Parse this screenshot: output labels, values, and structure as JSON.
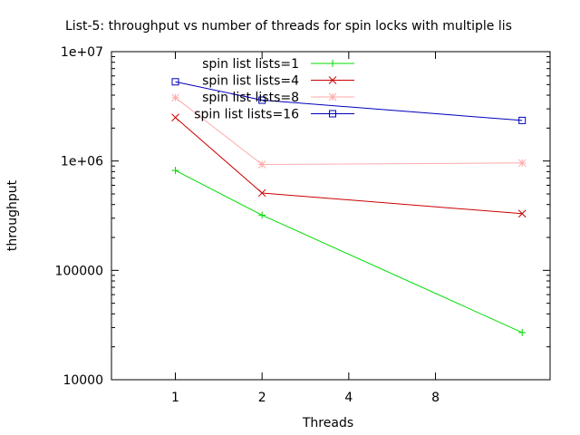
{
  "chart_data": {
    "type": "line",
    "title": "List-5: throughput vs number of threads for spin locks with multiple lis",
    "xlabel": "Threads",
    "ylabel": "throughput",
    "x_scale": "log2",
    "y_scale": "log10",
    "xlim": [
      0.6,
      20
    ],
    "ylim": [
      10000,
      10000000
    ],
    "x_ticks": [
      {
        "value": 1,
        "label": "1"
      },
      {
        "value": 2,
        "label": "2"
      },
      {
        "value": 4,
        "label": "4"
      },
      {
        "value": 8,
        "label": "8"
      }
    ],
    "y_ticks": [
      {
        "value": 10000,
        "label": "10000"
      },
      {
        "value": 100000,
        "label": "100000"
      },
      {
        "value": 1000000,
        "label": "1e+06"
      },
      {
        "value": 10000000,
        "label": "1e+07"
      }
    ],
    "grid": false,
    "legend_position": "top-left inside",
    "series": [
      {
        "name": "spin list lists=1",
        "color": "#00dd00",
        "marker": "plus",
        "points": [
          {
            "x": 1,
            "y": 820000
          },
          {
            "x": 2,
            "y": 320000
          },
          {
            "x": 16,
            "y": 27000
          }
        ]
      },
      {
        "name": "spin list lists=4",
        "color": "#cc0000",
        "marker": "x",
        "points": [
          {
            "x": 1,
            "y": 2500000
          },
          {
            "x": 2,
            "y": 510000
          },
          {
            "x": 16,
            "y": 330000
          }
        ]
      },
      {
        "name": "spin list lists=8",
        "color": "#ffaaaa",
        "marker": "star",
        "points": [
          {
            "x": 1,
            "y": 3800000
          },
          {
            "x": 2,
            "y": 930000
          },
          {
            "x": 16,
            "y": 960000
          }
        ]
      },
      {
        "name": "spin list lists=16",
        "color": "#0000bb",
        "marker": "square",
        "points": [
          {
            "x": 1,
            "y": 5300000
          },
          {
            "x": 2,
            "y": 3600000
          },
          {
            "x": 16,
            "y": 2350000
          }
        ]
      }
    ]
  }
}
